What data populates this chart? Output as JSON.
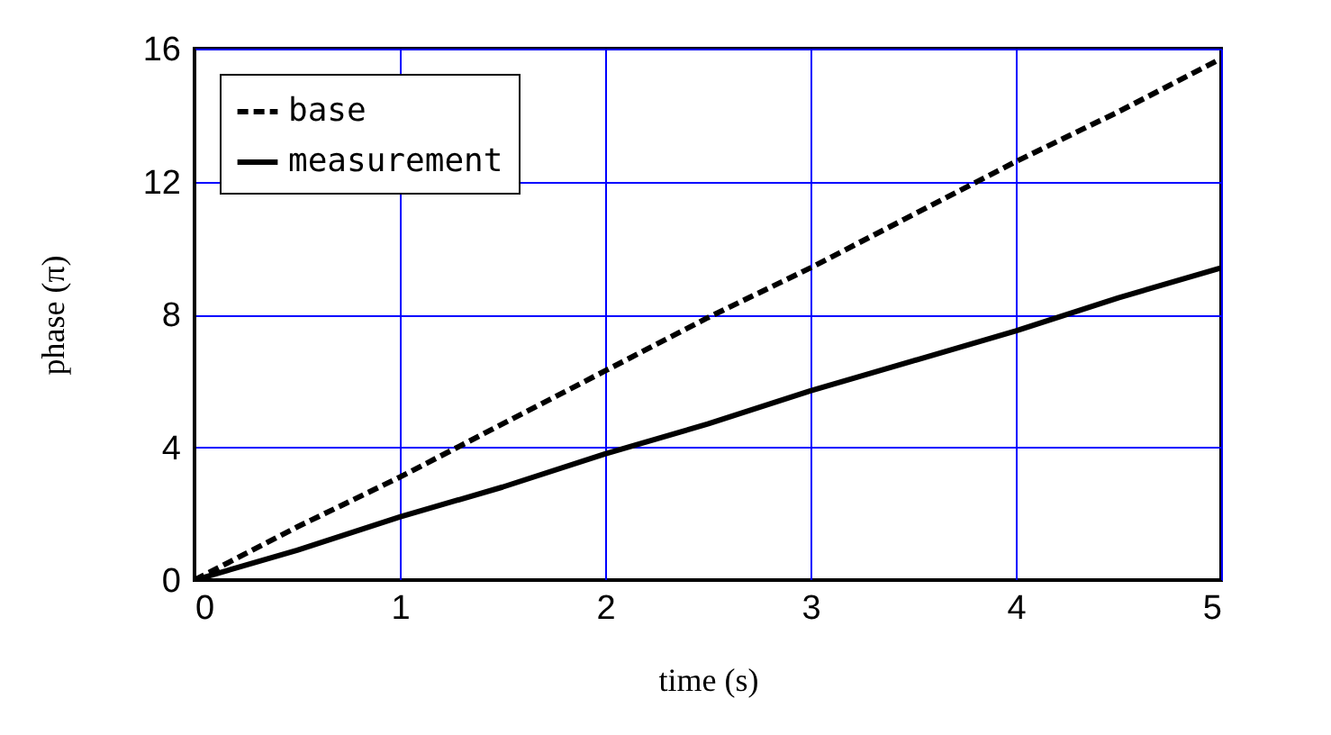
{
  "chart_data": {
    "type": "line",
    "xlabel": "time (s)",
    "ylabel": "phase (π)",
    "x": [
      0,
      0.5,
      1,
      1.5,
      2,
      2.5,
      3,
      3.5,
      4,
      4.5,
      5
    ],
    "series": [
      {
        "name": "base",
        "color": "#000000",
        "line_style": "dashed",
        "values": [
          0,
          1.6,
          3.1,
          4.7,
          6.3,
          7.9,
          9.4,
          11.0,
          12.6,
          14.1,
          15.7
        ]
      },
      {
        "name": "measurement",
        "color": "#000000",
        "line_style": "solid",
        "values": [
          0,
          0.9,
          1.9,
          2.8,
          3.8,
          4.7,
          5.7,
          6.6,
          7.5,
          8.5,
          9.4
        ]
      }
    ],
    "xlim": [
      0,
      5
    ],
    "ylim": [
      0,
      16
    ],
    "xticks": [
      0,
      1,
      2,
      3,
      4,
      5
    ],
    "yticks": [
      0,
      4,
      8,
      12,
      16
    ],
    "grid": true,
    "legend": "top left",
    "marker": "none"
  }
}
